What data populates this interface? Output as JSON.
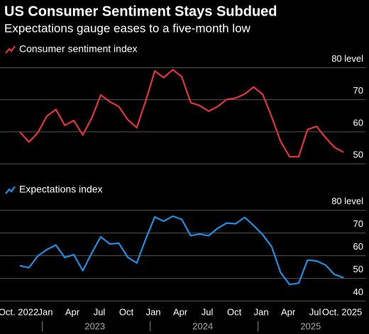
{
  "chart_data": [
    {
      "type": "line",
      "title": "US Consumer Sentiment Stays Subdued",
      "subtitle": "Expectations gauge eases to a five-month low",
      "series": [
        {
          "name": "Consumer sentiment index",
          "color": "#e0353a",
          "values": [
            59.9,
            56.8,
            59.7,
            64.9,
            67.0,
            62.0,
            63.5,
            59.0,
            64.4,
            71.5,
            69.4,
            67.9,
            63.8,
            61.3,
            69.7,
            79.0,
            76.9,
            79.4,
            77.2,
            69.1,
            68.2,
            66.4,
            67.9,
            70.1,
            70.5,
            71.8,
            74.0,
            71.7,
            64.7,
            57.0,
            52.2,
            52.2,
            60.7,
            61.7,
            58.2,
            55.1,
            53.6
          ]
        }
      ],
      "ylim": [
        48,
        83
      ],
      "yticks": [
        50,
        60,
        70,
        {
          "value": 80,
          "label": "80 level"
        }
      ],
      "grid": true
    },
    {
      "type": "line",
      "series": [
        {
          "name": "Expectations index",
          "color": "#1f8fe0",
          "values": [
            55.6,
            54.7,
            59.9,
            62.7,
            64.7,
            59.2,
            60.5,
            53.4,
            61.3,
            68.3,
            65.2,
            65.5,
            59.3,
            56.8,
            67.4,
            77.1,
            75.2,
            77.4,
            76.0,
            68.8,
            69.6,
            68.8,
            72.1,
            74.4,
            74.1,
            76.9,
            73.3,
            69.3,
            64.0,
            52.6,
            47.3,
            47.9,
            58.1,
            57.7,
            55.9,
            51.7,
            50.3
          ]
        }
      ],
      "ylim": [
        38,
        83
      ],
      "yticks": [
        40,
        50,
        60,
        70,
        {
          "value": 80,
          "label": "80 level"
        }
      ],
      "grid": true,
      "categories": [
        "Oct. 2022",
        null,
        null,
        "Jan",
        null,
        null,
        "Apr",
        null,
        null,
        "Jul",
        null,
        null,
        "Oct",
        null,
        null,
        "Jan",
        null,
        null,
        "Apr",
        null,
        null,
        "Jul",
        null,
        null,
        "Oct",
        null,
        null,
        "Jan",
        null,
        null,
        "Apr",
        null,
        null,
        "Jul",
        null,
        null,
        "Oct. 2025"
      ],
      "year_labels": [
        "2023",
        "2024",
        "2025"
      ]
    }
  ]
}
